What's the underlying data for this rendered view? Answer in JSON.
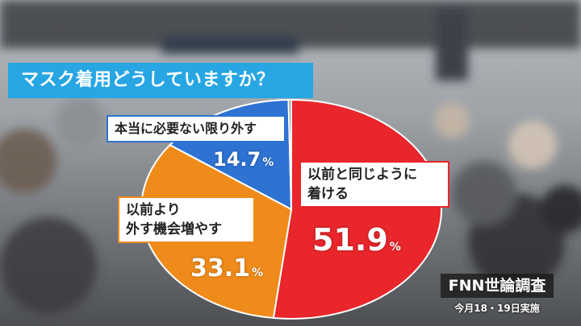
{
  "title": "マスク着用どうしていますか？",
  "chart_data": {
    "type": "pie",
    "slices": [
      {
        "label": "以前と同じように着ける",
        "value": 51.9,
        "color": "#e8262b"
      },
      {
        "label": "以前より外す機会増やす",
        "value": 33.1,
        "color": "#ef8b1a"
      },
      {
        "label": "本当に必要ない限り外す",
        "value": 14.7,
        "color": "#2e72d2"
      },
      {
        "label": "",
        "value": 0.3,
        "color": "#8a8a8a"
      }
    ],
    "unit": "%"
  },
  "labels": {
    "same_line1": "以前と同じように",
    "same_line2": "着ける",
    "same_value": "51.9",
    "more_line1": "以前より",
    "more_line2": "外す機会増やす",
    "more_value": "33.1",
    "remove": "本当に必要ない限り外す",
    "remove_value": "14.7",
    "unit": "%"
  },
  "source": {
    "name": "FNN世論調査",
    "date": "今月18・19日実施"
  }
}
